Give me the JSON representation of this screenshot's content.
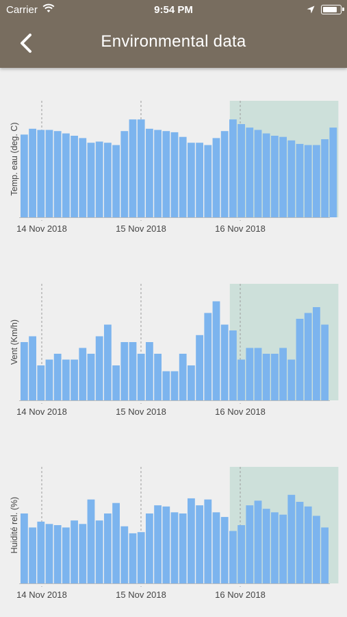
{
  "status_bar": {
    "carrier": "Carrier",
    "time": "9:54 PM",
    "icons": [
      "wifi-icon",
      "location-arrow-icon",
      "battery-icon"
    ]
  },
  "nav": {
    "title": "Environmental data",
    "back_icon": "chevron-left-icon"
  },
  "colors": {
    "header": "#786d5f",
    "bar": "#7cb4ee",
    "highlight": "#cde0da",
    "background": "#efefef"
  },
  "chart_data": [
    {
      "type": "bar",
      "ylabel": "Temp. eau (deg. C)",
      "x_tick_labels": [
        "14 Nov 2018",
        "15 Nov 2018",
        "16 Nov 2018"
      ],
      "values": [
        71,
        76,
        75,
        75,
        74,
        72,
        70,
        68,
        64,
        65,
        64,
        62,
        74,
        84,
        84,
        76,
        75,
        74,
        73,
        69,
        64,
        64,
        62,
        68,
        74,
        84,
        80,
        77,
        75,
        72,
        70,
        69,
        66,
        63,
        62,
        62,
        67,
        77
      ],
      "highlight_range": [
        24,
        37
      ]
    },
    {
      "type": "bar",
      "ylabel": "Vent (Km/h)",
      "x_tick_labels": [
        "14 Nov 2018",
        "15 Nov 2018",
        "16 Nov 2018"
      ],
      "values": [
        50,
        55,
        30,
        35,
        40,
        35,
        35,
        45,
        40,
        55,
        65,
        30,
        50,
        50,
        40,
        50,
        40,
        25,
        25,
        40,
        30,
        56,
        75,
        85,
        65,
        60,
        35,
        45,
        45,
        40,
        40,
        45,
        35,
        70,
        75,
        80,
        65
      ],
      "highlight_range": [
        24,
        37
      ]
    },
    {
      "type": "bar",
      "ylabel": "Huidité rel. (%)",
      "x_tick_labels": [
        "14 Nov 2018",
        "15 Nov 2018",
        "16 Nov 2018"
      ],
      "values": [
        60,
        48,
        53,
        51,
        50,
        48,
        54,
        51,
        72,
        54,
        60,
        69,
        49,
        43,
        44,
        60,
        67,
        66,
        61,
        60,
        73,
        67,
        72,
        61,
        57,
        45,
        50,
        67,
        71,
        64,
        61,
        59,
        76,
        70,
        66,
        58,
        48
      ],
      "highlight_range": [
        24,
        37
      ]
    }
  ]
}
